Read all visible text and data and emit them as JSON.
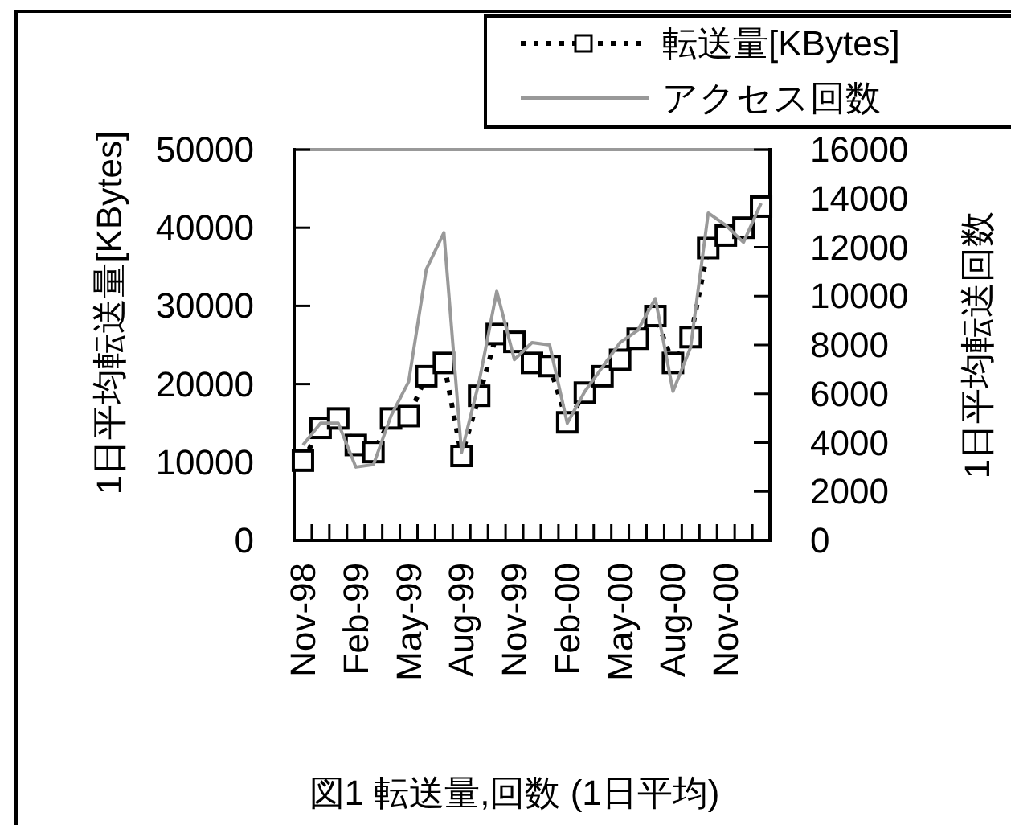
{
  "chart_data": {
    "type": "line",
    "categories": [
      "Nov-98",
      null,
      null,
      "Feb-99",
      null,
      null,
      "May-99",
      null,
      null,
      "Aug-99",
      null,
      null,
      "Nov-99",
      null,
      null,
      "Feb-00",
      null,
      null,
      "May-00",
      null,
      null,
      "Aug-00",
      null,
      null,
      "Nov-00",
      null,
      null
    ],
    "series": [
      {
        "name": "転送量[KBytes]",
        "color": "#000000",
        "marker": "square",
        "line_style": "dotted",
        "values": [
          10200,
          14400,
          15600,
          12200,
          11300,
          15600,
          15900,
          21000,
          22700,
          10800,
          18500,
          26400,
          25400,
          22700,
          22300,
          15100,
          18900,
          21000,
          23100,
          25800,
          28700,
          22700,
          26000,
          37400,
          39000,
          40000,
          42700
        ]
      },
      {
        "name": "アクセス回数",
        "color": "#999999",
        "marker": "none",
        "line_style": "solid",
        "axis": "y2",
        "values": [
          3900,
          4800,
          4800,
          3000,
          3100,
          5100,
          6500,
          11100,
          12600,
          3600,
          6500,
          10200,
          7400,
          8100,
          8000,
          4800,
          6100,
          7100,
          8100,
          8600,
          9900,
          6100,
          7900,
          13400,
          12900,
          12200,
          13800
        ]
      }
    ],
    "ylim": [
      0,
      50000
    ],
    "yticks": [
      0,
      10000,
      20000,
      30000,
      40000,
      50000
    ],
    "y2lim": [
      0,
      16000
    ],
    "y2ticks": [
      0,
      2000,
      4000,
      6000,
      8000,
      10000,
      12000,
      14000,
      16000
    ],
    "ylabel": "1日平均転送量[KBytes]",
    "y2label": "1日平均転送回数",
    "legend": "top right",
    "annotations": [
      "図1  転送量,回数 (1日平均)"
    ]
  }
}
